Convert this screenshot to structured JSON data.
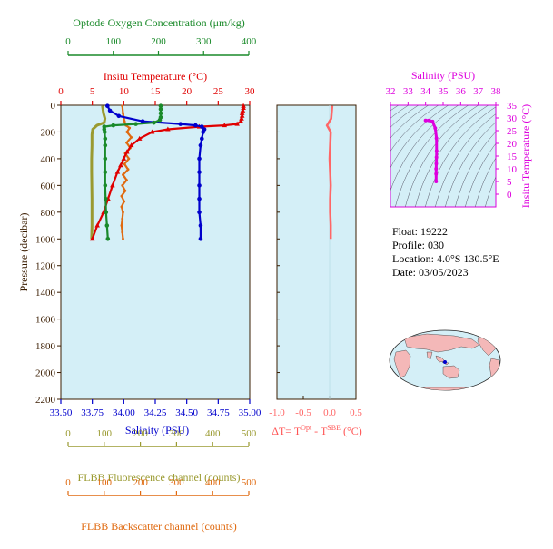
{
  "colors": {
    "oxygen": "#1a8a2a",
    "temperature": "#e00000",
    "salinity": "#0000cc",
    "fluorescence": "#9a9a30",
    "backscatter": "#e06a10",
    "delta_t": "#ff6666",
    "ts": "#dd00dd",
    "panel_bg": "#d4eff7",
    "axis_dark": "#3a1c00",
    "land": "#f4b8b8"
  },
  "chart_data": [
    {
      "type": "line",
      "panel": "profile",
      "ylabel": "Pressure (decibar)",
      "ylim": [
        2200,
        0
      ],
      "yticks": [
        "0",
        "200",
        "400",
        "600",
        "800",
        "1000",
        "1200",
        "1400",
        "1600",
        "1800",
        "2000",
        "2200"
      ],
      "axes": {
        "oxygen": {
          "label": "Optode Oxygen Concentration (μm/kg)",
          "range": [
            0,
            400
          ],
          "ticks": [
            "0",
            "100",
            "200",
            "300",
            "400"
          ]
        },
        "temperature": {
          "label": "Insitu Temperature (°C)",
          "range": [
            0,
            30
          ],
          "ticks": [
            "0",
            "5",
            "10",
            "15",
            "20",
            "25",
            "30"
          ]
        },
        "salinity": {
          "label": "Salinity (PSU)",
          "range": [
            33.5,
            35.0
          ],
          "ticks": [
            "33.50",
            "33.75",
            "34.00",
            "34.25",
            "34.50",
            "34.75",
            "35.00"
          ]
        },
        "fluorescence": {
          "label": "FLBB Fluorescence channel (counts)",
          "range": [
            0,
            500
          ],
          "ticks": [
            "0",
            "100",
            "200",
            "300",
            "400",
            "500"
          ]
        },
        "backscatter": {
          "label": "FLBB Backscatter channel (counts)",
          "range": [
            0,
            500
          ],
          "ticks": [
            "0",
            "100",
            "200",
            "300",
            "400",
            "500"
          ]
        }
      },
      "series": [
        {
          "id": "temperature",
          "pressure": [
            5,
            20,
            40,
            60,
            80,
            100,
            120,
            140,
            150,
            160,
            180,
            200,
            250,
            300,
            350,
            400,
            450,
            500,
            600,
            700,
            800,
            900,
            1000
          ],
          "values": [
            29.0,
            29.0,
            28.9,
            28.8,
            28.8,
            28.7,
            28.6,
            28.0,
            26.0,
            22.0,
            17.0,
            14.5,
            12.5,
            11.2,
            10.5,
            10.0,
            9.5,
            9.0,
            8.2,
            7.5,
            6.8,
            5.8,
            5.0
          ]
        },
        {
          "id": "salinity",
          "pressure": [
            5,
            40,
            80,
            120,
            140,
            150,
            160,
            180,
            200,
            250,
            300,
            400,
            500,
            600,
            700,
            800,
            900,
            1000
          ],
          "values": [
            33.87,
            33.89,
            33.96,
            34.15,
            34.45,
            34.57,
            34.62,
            34.64,
            34.63,
            34.62,
            34.61,
            34.6,
            34.6,
            34.6,
            34.6,
            34.6,
            34.61,
            34.61
          ]
        },
        {
          "id": "oxygen",
          "pressure": [
            5,
            30,
            60,
            90,
            110,
            130,
            140,
            150,
            160,
            180,
            200,
            250,
            300,
            400,
            500,
            600,
            700,
            800,
            900,
            1000
          ],
          "values": [
            205,
            205,
            205,
            205,
            203,
            190,
            150,
            100,
            80,
            80,
            81,
            82,
            82,
            82,
            82,
            82,
            83,
            84,
            86,
            88
          ]
        },
        {
          "id": "fluorescence",
          "pressure": [
            5,
            60,
            100,
            130,
            150,
            180,
            220,
            300,
            400,
            500,
            700,
            900,
            1000
          ],
          "values": [
            95,
            98,
            102,
            100,
            80,
            68,
            66,
            66,
            65,
            65,
            66,
            66,
            65
          ]
        },
        {
          "id": "backscatter",
          "pressure": [
            5,
            60,
            120,
            150,
            170,
            200,
            240,
            280,
            320,
            360,
            400,
            440,
            480,
            520,
            560,
            600,
            640,
            680,
            720,
            760,
            800,
            850,
            900,
            950,
            1000
          ],
          "values": [
            150,
            152,
            156,
            160,
            170,
            163,
            175,
            162,
            172,
            158,
            168,
            156,
            166,
            152,
            162,
            150,
            158,
            148,
            155,
            148,
            152,
            150,
            148,
            150,
            152
          ]
        }
      ]
    },
    {
      "type": "line",
      "panel": "delta_t",
      "xlabel": "ΔT= T",
      "xlabel_sup1": "Opt",
      "xlabel_mid": " - T",
      "xlabel_sup2": "SBE",
      "xlabel_end": " (°C)",
      "xlim": [
        -1.0,
        0.5
      ],
      "xticks": [
        "-1.0",
        "-0.5",
        "0.0",
        "0.5"
      ],
      "pressure": [
        5,
        50,
        100,
        150,
        200,
        300,
        400,
        500,
        600,
        700,
        800,
        900,
        1000
      ],
      "values": [
        0.05,
        0.04,
        0.03,
        -0.05,
        0.02,
        0.01,
        0.0,
        0.01,
        0.02,
        0.01,
        0.01,
        0.02,
        0.02
      ]
    },
    {
      "type": "scatter",
      "panel": "ts",
      "title": "Salinity (PSU)",
      "ylabel": "Insitu Temperature (°C)",
      "xlim": [
        32,
        38
      ],
      "ylim": [
        -5,
        35
      ],
      "xticks": [
        "32",
        "33",
        "34",
        "35",
        "36",
        "37",
        "38"
      ],
      "yticks": [
        "0",
        "5",
        "10",
        "15",
        "20",
        "25",
        "30",
        "35"
      ],
      "salinity": [
        34.0,
        34.2,
        34.4,
        34.55,
        34.62,
        34.63,
        34.62,
        34.61,
        34.6,
        34.6,
        34.6
      ],
      "temperature": [
        29.0,
        29.0,
        28.6,
        26.0,
        22.0,
        17.0,
        14.5,
        12.0,
        10.0,
        8.0,
        5.0
      ]
    }
  ],
  "float_info": {
    "float": "Float:  19222",
    "profile": "Profile:  030",
    "location": "Location:  4.0°S  130.5°E",
    "date": "Date:  03/05/2023"
  },
  "map": {
    "marker_lat": -4.0,
    "marker_lon": 130.5
  }
}
